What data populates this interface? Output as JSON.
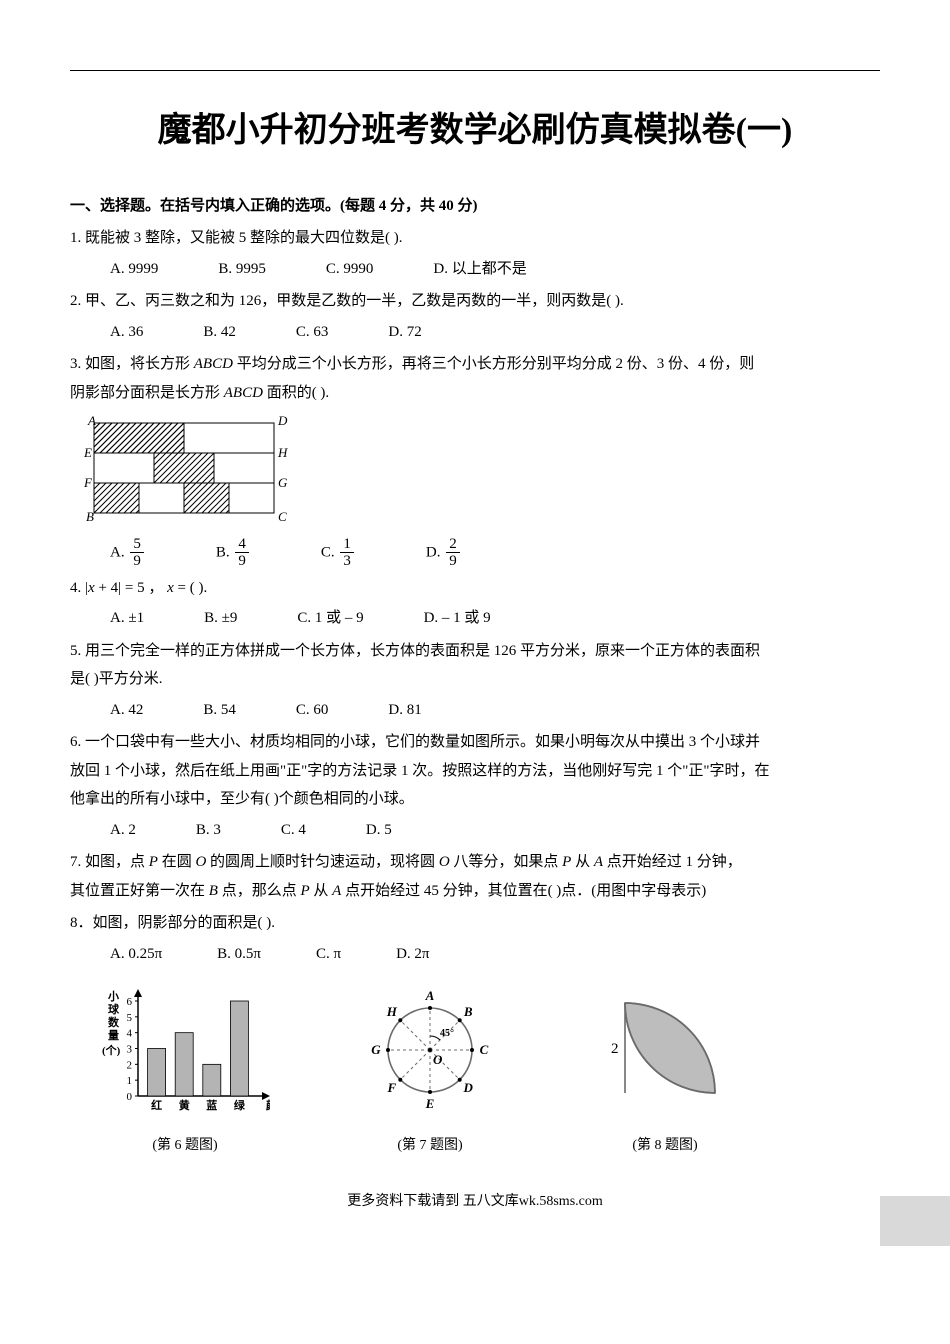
{
  "title": "魔都小升初分班考数学必刷仿真模拟卷(一)",
  "section1_head": "一、选择题。在括号内填入正确的选项。(每题 4 分，共 40 分)",
  "q1": {
    "stem": "1.  既能被 3 整除，又能被 5 整除的最大四位数是(      ).",
    "A": "A. 9999",
    "B": "B. 9995",
    "C": "C. 9990",
    "D": "D. 以上都不是"
  },
  "q2": {
    "stem": "2. 甲、乙、丙三数之和为 126，甲数是乙数的一半，乙数是丙数的一半，则丙数是(      ).",
    "A": "A. 36",
    "B": "B. 42",
    "C": "C. 63",
    "D": "D. 72"
  },
  "q3": {
    "line1": "3.  如图，将长方形 ",
    "abcd": "ABCD",
    "line1b": " 平均分成三个小长方形，再将三个小长方形分别平均分成 2 份、3 份、4 份，则",
    "line2a": "阴影部分面积是长方形 ",
    "line2b": " 面积的(      ).",
    "A": "A. ",
    "B": "B. ",
    "C": "C. ",
    "D": "D. ",
    "fA": {
      "n": "5",
      "d": "9"
    },
    "fB": {
      "n": "4",
      "d": "9"
    },
    "fC": {
      "n": "1",
      "d": "3"
    },
    "fD": {
      "n": "2",
      "d": "9"
    },
    "labels": {
      "A": "A",
      "D": "D",
      "E": "E",
      "H": "H",
      "F": "F",
      "G": "G",
      "B": "B",
      "C": "C"
    }
  },
  "q4": {
    "stem_pre": "4. ",
    "eq_lhs": "|x + 4|",
    "eq": " = 5 ，  ",
    "xvar": "x",
    "eq2": " = (      ).",
    "A": "A. ±1",
    "B": "B. ±9",
    "C": "C. 1 或 – 9",
    "D": "D.  – 1 或 9"
  },
  "q5": {
    "line1": "5. 用三个完全一样的正方体拼成一个长方体，长方体的表面积是 126 平方分米，原来一个正方体的表面积",
    "line2": "是(      )平方分米.",
    "A": "A. 42",
    "B": "B. 54",
    "C": "C. 60",
    "D": "D. 81"
  },
  "q6": {
    "line1": "6. 一个口袋中有一些大小、材质均相同的小球，它们的数量如图所示。如果小明每次从中摸出 3 个小球并",
    "line2": "放回 1 个小球，然后在纸上用画\"正\"字的方法记录 1 次。按照这样的方法，当他刚好写完 1 个\"正\"字时，在",
    "line3": "他拿出的所有小球中，至少有(      )个颜色相同的小球。",
    "A": "A. 2",
    "B": "B. 3",
    "C": "C. 4",
    "D": "D. 5"
  },
  "q7": {
    "line1_a": "7. 如图，点 ",
    "P": "P",
    "line1_b": " 在圆 ",
    "O": "O",
    "line1_c": " 的圆周上顺时针匀速运动，现将圆 ",
    "line1_d": " 八等分，如果点 ",
    "line1_e": " 从 ",
    "A": "A",
    "line1_f": " 点开始经过 1 分钟，",
    "line2_a": "其位置正好第一次在 ",
    "B": "B",
    "line2_b": " 点，那么点 ",
    "line2_c": " 从 ",
    "line2_d": " 点开始经过 45 分钟，其位置在(      )点．(用图中字母表示)"
  },
  "q8": {
    "stem": "8．如图，阴影部分的面积是(      ).",
    "A": "A. 0.25π",
    "B": "B. 0.5π",
    "C": "C. π",
    "D": "D. 2π"
  },
  "fig6": {
    "caption": "(第 6 题图)",
    "ylabel": [
      "小",
      "球",
      "数",
      "量"
    ],
    "yunit": "(个)",
    "xlabel": "颜色",
    "cats": [
      "红",
      "黄",
      "蓝",
      "绿"
    ],
    "vals": [
      3,
      4,
      2,
      6
    ],
    "ymax": 6,
    "bar_color": "#b4b4b4",
    "axis_color": "#000"
  },
  "fig7": {
    "caption": "(第 7 题图)",
    "labels": [
      "A",
      "B",
      "C",
      "D",
      "E",
      "F",
      "G",
      "H"
    ],
    "center": "O",
    "angle": "45°",
    "stroke": "#6b6b6b"
  },
  "fig8": {
    "caption": "(第 8 题图)",
    "side": "2",
    "fill": "#bdbdbd",
    "stroke": "#6b6b6b"
  },
  "footer": "更多资料下载请到 五八文库wk.58sms.com"
}
